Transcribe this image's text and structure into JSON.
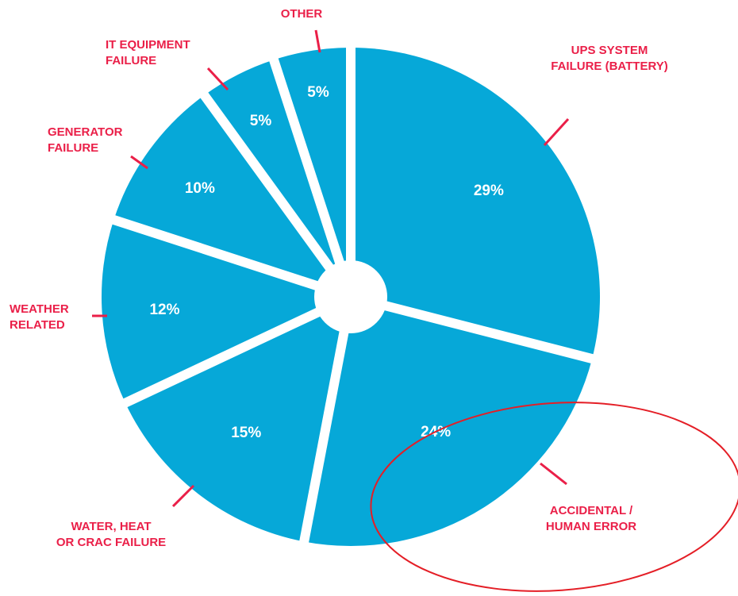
{
  "chart_data": {
    "type": "pie",
    "title": "",
    "style": "donut with exploded white gaps",
    "slice_color": "#06a8d8",
    "label_color": "#ea1f48",
    "highlight_color": "#e41e26",
    "highlighted_slice": "ACCIDENTAL / HUMAN ERROR",
    "slices": [
      {
        "label_lines": [
          "UPS SYSTEM",
          "FAILURE (BATTERY)"
        ],
        "value": 29,
        "value_label": "29%"
      },
      {
        "label_lines": [
          "ACCIDENTAL /",
          "HUMAN ERROR"
        ],
        "value": 24,
        "value_label": "24%"
      },
      {
        "label_lines": [
          "WATER, HEAT",
          "OR CRAC FAILURE"
        ],
        "value": 15,
        "value_label": "15%"
      },
      {
        "label_lines": [
          "WEATHER",
          "RELATED"
        ],
        "value": 12,
        "value_label": "12%"
      },
      {
        "label_lines": [
          "GENERATOR",
          "FAILURE"
        ],
        "value": 10,
        "value_label": "10%"
      },
      {
        "label_lines": [
          "IT EQUIPMENT",
          "FAILURE"
        ],
        "value": 5,
        "value_label": "5%"
      },
      {
        "label_lines": [
          "OTHER"
        ],
        "value": 5,
        "value_label": "5%"
      }
    ]
  }
}
